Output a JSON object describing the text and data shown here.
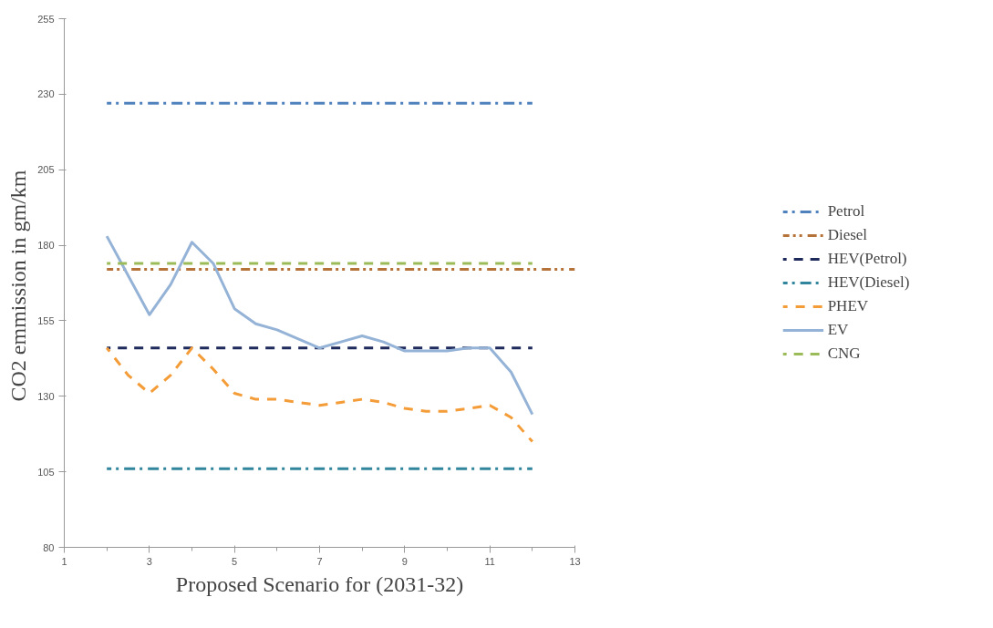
{
  "chart_data": {
    "type": "line",
    "xlabel": "Proposed Scenario for (2031-32)",
    "ylabel": "CO2  emmission in gm/km",
    "xlim": [
      1,
      13
    ],
    "ylim": [
      80,
      255
    ],
    "xticks": [
      1,
      3,
      5,
      7,
      9,
      11,
      13
    ],
    "yticks": [
      80,
      105,
      130,
      155,
      180,
      205,
      230,
      255
    ],
    "grid": false,
    "legend": "right",
    "marker": "none",
    "series": [
      {
        "name": "Petrol",
        "color": "#4f81bd",
        "line_style": "dashdot",
        "x": [
          2,
          12
        ],
        "values": [
          227,
          227
        ]
      },
      {
        "name": "Diesel",
        "color": "#b5733a",
        "line_style": "dashdotdot",
        "x": [
          2,
          13
        ],
        "values": [
          172,
          172
        ]
      },
      {
        "name": "HEV(Petrol)",
        "color": "#1f2a5c",
        "line_style": "dashed",
        "x": [
          2,
          12
        ],
        "values": [
          146,
          146
        ]
      },
      {
        "name": "HEV(Diesel)",
        "color": "#31859c",
        "line_style": "dashdot",
        "x": [
          2,
          12
        ],
        "values": [
          106,
          106
        ]
      },
      {
        "name": "PHEV",
        "color": "#f39c38",
        "line_style": "dashed",
        "x": [
          2,
          2.5,
          3,
          3.5,
          4,
          4.5,
          5,
          5.5,
          6,
          6.5,
          7,
          7.5,
          8,
          8.5,
          9,
          9.5,
          10,
          10.5,
          11,
          11.5,
          12
        ],
        "values": [
          146,
          137,
          131,
          137,
          146,
          139,
          131,
          129,
          129,
          128,
          127,
          128,
          129,
          128,
          126,
          125,
          125,
          126,
          127,
          123,
          115
        ]
      },
      {
        "name": "EV",
        "color": "#95b3d7",
        "line_style": "solid",
        "x": [
          2,
          2.5,
          3,
          3.5,
          4,
          4.5,
          5,
          5.5,
          6,
          6.5,
          7,
          7.5,
          8,
          8.5,
          9,
          9.5,
          10,
          10.5,
          11,
          11.5,
          12
        ],
        "values": [
          183,
          170,
          157,
          167,
          181,
          174,
          159,
          154,
          152,
          149,
          146,
          148,
          150,
          148,
          145,
          145,
          145,
          146,
          146,
          138,
          124
        ]
      },
      {
        "name": "CNG",
        "color": "#9bbb59",
        "line_style": "dashed",
        "x": [
          2,
          12
        ],
        "values": [
          174,
          174
        ]
      }
    ]
  }
}
